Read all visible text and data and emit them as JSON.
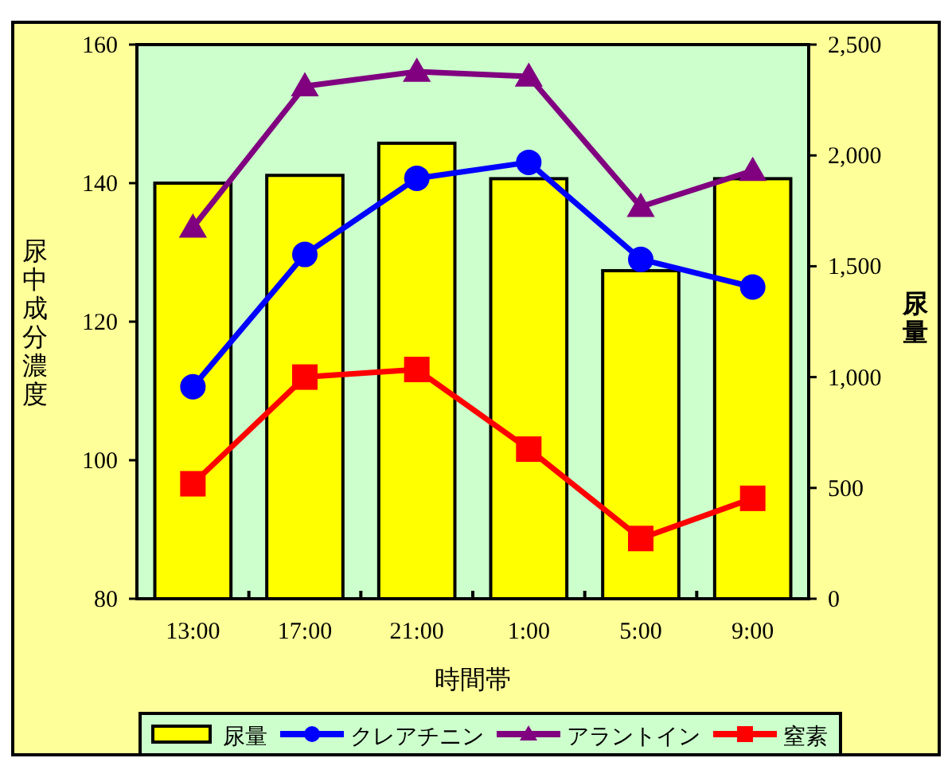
{
  "chart_data": {
    "type": "bar",
    "xlabel": "時間帯",
    "ylabel": "尿中成分濃度",
    "y2label": "尿量",
    "categories": [
      "13:00",
      "17:00",
      "21:00",
      "1:00",
      "5:00",
      "9:00"
    ],
    "series": [
      {
        "name": "尿量",
        "axis": "y2",
        "color": "#ffff00",
        "values": [
          1875,
          1910,
          2055,
          1895,
          1480,
          1895
        ]
      },
      {
        "name": "クレアチニン",
        "type": "line",
        "color": "#0000ff",
        "marker": "circle",
        "values": [
          110.6,
          129.7,
          140.7,
          143.0,
          129.0,
          125.0
        ]
      },
      {
        "name": "アラントイン",
        "type": "line",
        "color": "#800080",
        "marker": "triangle",
        "values": [
          133.6,
          154.0,
          156.1,
          155.4,
          136.6,
          141.8
        ]
      },
      {
        "name": "窒素",
        "type": "line",
        "color": "#ff0000",
        "marker": "square",
        "values": [
          96.6,
          112.0,
          113.1,
          101.6,
          88.7,
          94.5
        ]
      }
    ],
    "ylim": [
      80,
      160
    ],
    "yticks": [
      80,
      100,
      120,
      140,
      160
    ],
    "y2lim": [
      0,
      2500
    ],
    "y2ticks": [
      0,
      {
        "value": 500,
        "label": "500"
      },
      {
        "value": 1000,
        "label": "1,000"
      },
      {
        "value": 1500,
        "label": "1,500"
      },
      {
        "value": 2000,
        "label": "2,000"
      },
      {
        "value": 2500,
        "label": "2,500"
      }
    ],
    "grid": false,
    "legend": "bottom"
  }
}
